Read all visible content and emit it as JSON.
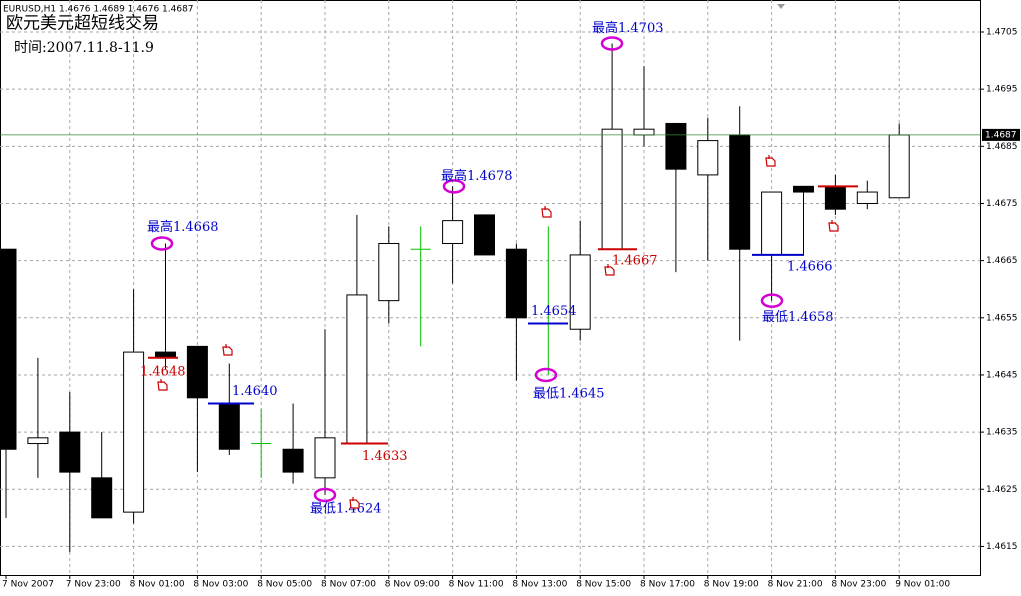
{
  "chart_data": {
    "type": "candlestick",
    "info": "EURUSD,H1  1.4676 1.4689 1.4676 1.4687",
    "title": "欧元美元超短线交易",
    "subtitle": "时间:2007.11.8-11.9",
    "categories": [
      "7 Nov 2007",
      null,
      "7 Nov 23:00",
      null,
      "8 Nov 01:00",
      null,
      "8 Nov 03:00",
      null,
      "8 Nov 05:00",
      null,
      "8 Nov 07:00",
      null,
      "8 Nov 09:00",
      null,
      "8 Nov 11:00",
      null,
      "8 Nov 13:00",
      null,
      "8 Nov 15:00",
      null,
      "8 Nov 17:00",
      null,
      "8 Nov 19:00",
      null,
      "8 Nov 21:00",
      null,
      "8 Nov 23:00",
      null,
      "9 Nov 01:00"
    ],
    "open": [
      1.4667,
      1.4633,
      1.4635,
      1.4627,
      1.4621,
      1.4649,
      1.465,
      1.464,
      1.4633,
      1.4632,
      1.4627,
      1.4633,
      1.4658,
      1.4667,
      1.4668,
      1.4673,
      1.4667,
      1.4654,
      1.4653,
      1.4667,
      1.4687,
      1.4689,
      1.468,
      1.4687,
      1.4666,
      1.4678,
      1.4678,
      1.4675,
      1.4676
    ],
    "high": [
      1.4667,
      1.4648,
      1.4642,
      1.4635,
      1.466,
      1.4668,
      1.465,
      1.4647,
      1.4639,
      1.464,
      1.4653,
      1.4673,
      1.4671,
      1.4671,
      1.4678,
      1.4673,
      1.4668,
      1.4671,
      1.4672,
      1.4703,
      1.4699,
      1.4689,
      1.469,
      1.4692,
      1.4677,
      1.4678,
      1.468,
      1.4679,
      1.4689
    ],
    "low": [
      1.462,
      1.4627,
      1.4614,
      1.462,
      1.4619,
      1.4646,
      1.4628,
      1.4631,
      1.4627,
      1.4626,
      1.4624,
      1.4633,
      1.4654,
      1.465,
      1.4661,
      1.4666,
      1.4644,
      1.4645,
      1.4651,
      1.4667,
      1.4685,
      1.4663,
      1.4665,
      1.4651,
      1.4658,
      1.4666,
      1.4673,
      1.4674,
      1.4676
    ],
    "close": [
      1.4632,
      1.4634,
      1.4628,
      1.462,
      1.4649,
      1.4648,
      1.4641,
      1.4632,
      1.4633,
      1.4628,
      1.4634,
      1.4659,
      1.4668,
      1.4667,
      1.4672,
      1.4666,
      1.4655,
      1.4654,
      1.4666,
      1.4688,
      1.4688,
      1.4681,
      1.4686,
      1.4667,
      1.4677,
      1.4677,
      1.4674,
      1.4677,
      1.4687
    ],
    "up_color": "#ffffff",
    "down_color": "#000000",
    "doji_color": "#00c000",
    "ylim": [
      1.461,
      1.47106
    ],
    "yticks": [
      1.4705,
      1.4695,
      1.4685,
      1.4675,
      1.4665,
      1.4655,
      1.4645,
      1.4635,
      1.4625,
      1.4615
    ],
    "grid": true,
    "current_price": 1.4687,
    "annotations": [
      {
        "label": "最高1.4668",
        "value": 1.4668,
        "color": "#0000cc"
      },
      {
        "label": "1.4648",
        "value": 1.4648,
        "color": "#cc0000"
      },
      {
        "label": "1.4640",
        "value": 1.464,
        "color": "#0000cc"
      },
      {
        "label": "最低1.4624",
        "value": 1.4624,
        "color": "#0000cc"
      },
      {
        "label": "1.4633",
        "value": 1.4633,
        "color": "#cc0000"
      },
      {
        "label": "最高1.4678",
        "value": 1.4678,
        "color": "#0000cc"
      },
      {
        "label": "1.4654",
        "value": 1.4654,
        "color": "#0000cc"
      },
      {
        "label": "最低1.4645",
        "value": 1.4645,
        "color": "#0000cc"
      },
      {
        "label": "最高1.4703",
        "value": 1.4703,
        "color": "#0000cc"
      },
      {
        "label": "1.4667",
        "value": 1.4667,
        "color": "#cc0000"
      },
      {
        "label": "1.4666",
        "value": 1.4666,
        "color": "#0000cc"
      },
      {
        "label": "最低1.4658",
        "value": 1.4658,
        "color": "#0000cc"
      },
      {
        "value": 1.4678,
        "color": "#cc0000"
      }
    ]
  }
}
